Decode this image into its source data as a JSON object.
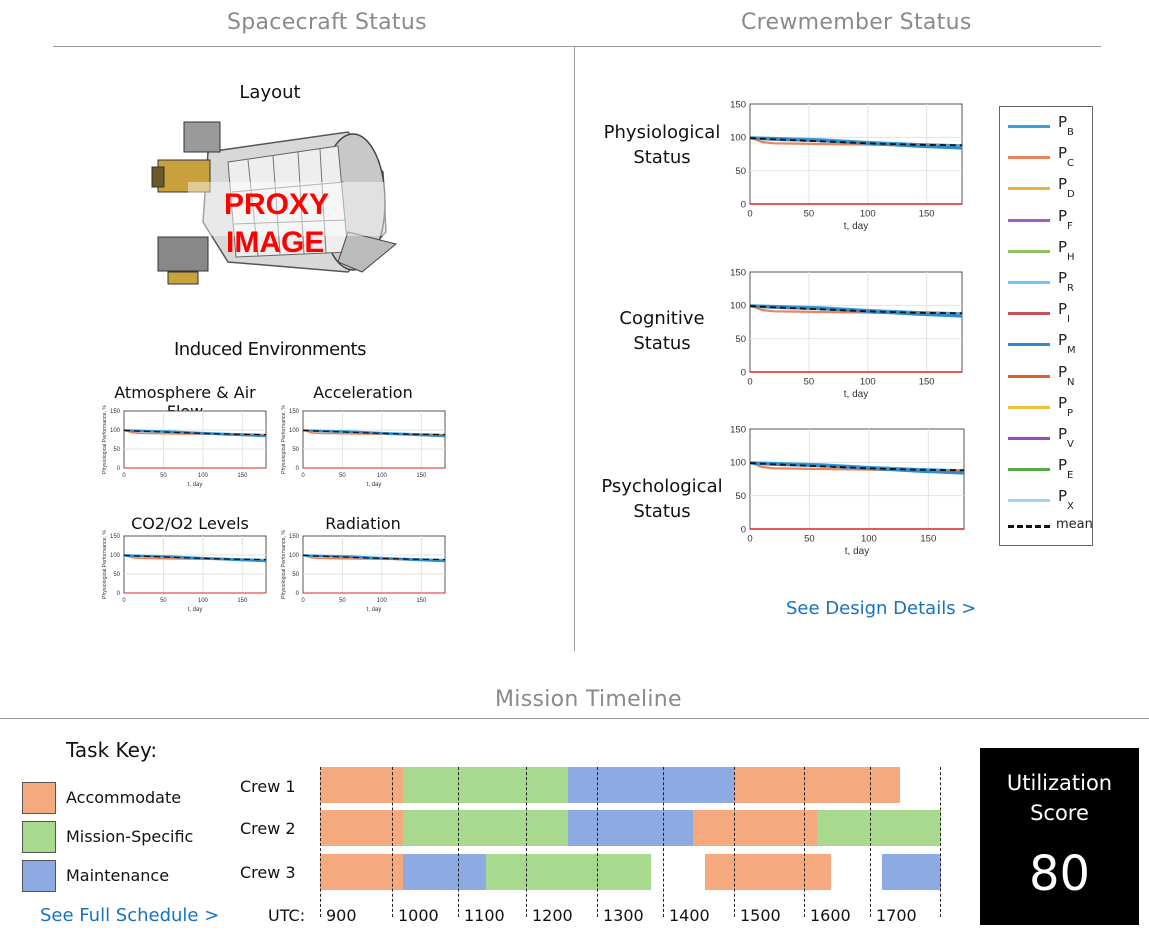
{
  "sections": {
    "spacecraft": "Spacecraft Status",
    "crew": "Crewmember Status",
    "timeline": "Mission Timeline"
  },
  "spacecraft": {
    "layout_title": "Layout",
    "proxy_line1": "PROXY",
    "proxy_line2": "IMAGE",
    "induced_title": "Induced Environments",
    "env_titles": [
      "Atmosphere & Air Flow",
      "Acceleration",
      "CO2/O2 Levels",
      "Radiation"
    ]
  },
  "crew": {
    "physio": [
      "Physiological",
      "Status"
    ],
    "cognitive": [
      "Cognitive",
      "Status"
    ],
    "psycho": [
      "Psychological",
      "Status"
    ],
    "details_link": "See Design Details >"
  },
  "legend": {
    "items": [
      {
        "p": "P",
        "sub": "B",
        "color": "#3aa0d8"
      },
      {
        "p": "P",
        "sub": "C",
        "color": "#e8835a"
      },
      {
        "p": "P",
        "sub": "D",
        "color": "#e6b43a"
      },
      {
        "p": "P",
        "sub": "F",
        "color": "#a45cc0"
      },
      {
        "p": "P",
        "sub": "H",
        "color": "#8cc063"
      },
      {
        "p": "P",
        "sub": "R",
        "color": "#6ec8ee"
      },
      {
        "p": "P",
        "sub": "I",
        "color": "#c8505a"
      },
      {
        "p": "P",
        "sub": "M",
        "color": "#2e8ccc"
      },
      {
        "p": "P",
        "sub": "N",
        "color": "#e0602a"
      },
      {
        "p": "P",
        "sub": "P",
        "color": "#f0c23a"
      },
      {
        "p": "P",
        "sub": "V",
        "color": "#9a4ab8"
      },
      {
        "p": "P",
        "sub": "E",
        "color": "#5aa848"
      },
      {
        "p": "P",
        "sub": "X",
        "color": "#9ed4f0"
      }
    ],
    "mean_label": "mean"
  },
  "chart_common": {
    "y_ticks": [
      "150",
      "100",
      "50",
      "0"
    ],
    "x_ticks": [
      "0",
      "50",
      "100",
      "150"
    ],
    "xlabel": "t, day",
    "small_ylabel": "Physiological Performance, %"
  },
  "chart_data": [
    {
      "type": "line",
      "id": "physiological",
      "xlabel": "t, day",
      "xlim": [
        0,
        180
      ],
      "ylim": [
        0,
        150
      ],
      "series": [
        {
          "name": "P_B",
          "x": [
            0,
            20,
            60,
            100,
            140,
            180
          ],
          "y": [
            100,
            99,
            97,
            93,
            90,
            88
          ]
        },
        {
          "name": "P_C",
          "x": [
            0,
            10,
            20,
            60,
            100,
            140,
            180
          ],
          "y": [
            100,
            93,
            91,
            90,
            89,
            88,
            87
          ]
        },
        {
          "name": "P_X",
          "x": [
            0,
            20,
            60,
            100,
            140,
            180
          ],
          "y": [
            99,
            97,
            95,
            91,
            87,
            84
          ]
        },
        {
          "name": "mean",
          "x": [
            0,
            20,
            60,
            100,
            140,
            180
          ],
          "y": [
            99,
            97,
            94,
            91,
            89,
            88
          ]
        },
        {
          "name": "threshold",
          "x": [
            0,
            180
          ],
          "y": [
            0,
            0
          ]
        }
      ]
    },
    {
      "type": "line",
      "id": "cognitive",
      "xlabel": "t, day",
      "xlim": [
        0,
        180
      ],
      "ylim": [
        0,
        150
      ],
      "series": [
        {
          "name": "P_B",
          "x": [
            0,
            20,
            60,
            100,
            140,
            180
          ],
          "y": [
            100,
            99,
            97,
            93,
            90,
            88
          ]
        },
        {
          "name": "P_C",
          "x": [
            0,
            10,
            20,
            60,
            100,
            140,
            180
          ],
          "y": [
            100,
            93,
            91,
            90,
            89,
            88,
            87
          ]
        },
        {
          "name": "P_X",
          "x": [
            0,
            20,
            60,
            100,
            140,
            180
          ],
          "y": [
            99,
            97,
            95,
            91,
            87,
            84
          ]
        },
        {
          "name": "mean",
          "x": [
            0,
            20,
            60,
            100,
            140,
            180
          ],
          "y": [
            99,
            97,
            94,
            91,
            89,
            88
          ]
        },
        {
          "name": "threshold",
          "x": [
            0,
            180
          ],
          "y": [
            0,
            0
          ]
        }
      ]
    },
    {
      "type": "line",
      "id": "psychological",
      "xlabel": "t, day",
      "xlim": [
        0,
        180
      ],
      "ylim": [
        0,
        150
      ],
      "series": [
        {
          "name": "P_B",
          "x": [
            0,
            20,
            60,
            100,
            140,
            180
          ],
          "y": [
            100,
            99,
            97,
            93,
            90,
            88
          ]
        },
        {
          "name": "P_C",
          "x": [
            0,
            10,
            20,
            60,
            100,
            140,
            180
          ],
          "y": [
            100,
            93,
            91,
            90,
            89,
            88,
            87
          ]
        },
        {
          "name": "P_X",
          "x": [
            0,
            20,
            60,
            100,
            140,
            180
          ],
          "y": [
            99,
            97,
            95,
            91,
            87,
            84
          ]
        },
        {
          "name": "mean",
          "x": [
            0,
            20,
            60,
            100,
            140,
            180
          ],
          "y": [
            99,
            97,
            94,
            91,
            89,
            88
          ]
        },
        {
          "name": "threshold",
          "x": [
            0,
            180
          ],
          "y": [
            0,
            0
          ]
        }
      ]
    }
  ],
  "timeline": {
    "task_key_title": "Task Key:",
    "keys": [
      {
        "label": "Accommodate",
        "color": "#f4a97e"
      },
      {
        "label": "Mission-Specific",
        "color": "#a9d88f"
      },
      {
        "label": "Maintenance",
        "color": "#8eaae2"
      }
    ],
    "crew_labels": [
      "Crew 1",
      "Crew 2",
      "Crew 3"
    ],
    "utc_prefix": "UTC:",
    "hours": [
      "900",
      "1000",
      "1100",
      "1200",
      "1300",
      "1400",
      "1500",
      "1600",
      "1700"
    ],
    "tasks": [
      {
        "crew": 0,
        "type": 0,
        "start": 900,
        "end": 1020
      },
      {
        "crew": 0,
        "type": 1,
        "start": 1020,
        "end": 1260
      },
      {
        "crew": 0,
        "type": 2,
        "start": 1260,
        "end": 1500
      },
      {
        "crew": 0,
        "type": 0,
        "start": 1500,
        "end": 1740
      },
      {
        "crew": 1,
        "type": 0,
        "start": 900,
        "end": 1020
      },
      {
        "crew": 1,
        "type": 1,
        "start": 1020,
        "end": 1260
      },
      {
        "crew": 1,
        "type": 2,
        "start": 1260,
        "end": 1440
      },
      {
        "crew": 1,
        "type": 0,
        "start": 1440,
        "end": 1620
      },
      {
        "crew": 1,
        "type": 1,
        "start": 1620,
        "end": 1800
      },
      {
        "crew": 2,
        "type": 0,
        "start": 900,
        "end": 1020
      },
      {
        "crew": 2,
        "type": 2,
        "start": 1020,
        "end": 1140
      },
      {
        "crew": 2,
        "type": 1,
        "start": 1140,
        "end": 1380
      },
      {
        "crew": 2,
        "type": 0,
        "start": 1458,
        "end": 1640
      },
      {
        "crew": 2,
        "type": 2,
        "start": 1715,
        "end": 1800
      }
    ],
    "schedule_link": "See Full Schedule >"
  },
  "utilization": {
    "title_line1": "Utilization",
    "title_line2": "Score",
    "value": "80"
  }
}
